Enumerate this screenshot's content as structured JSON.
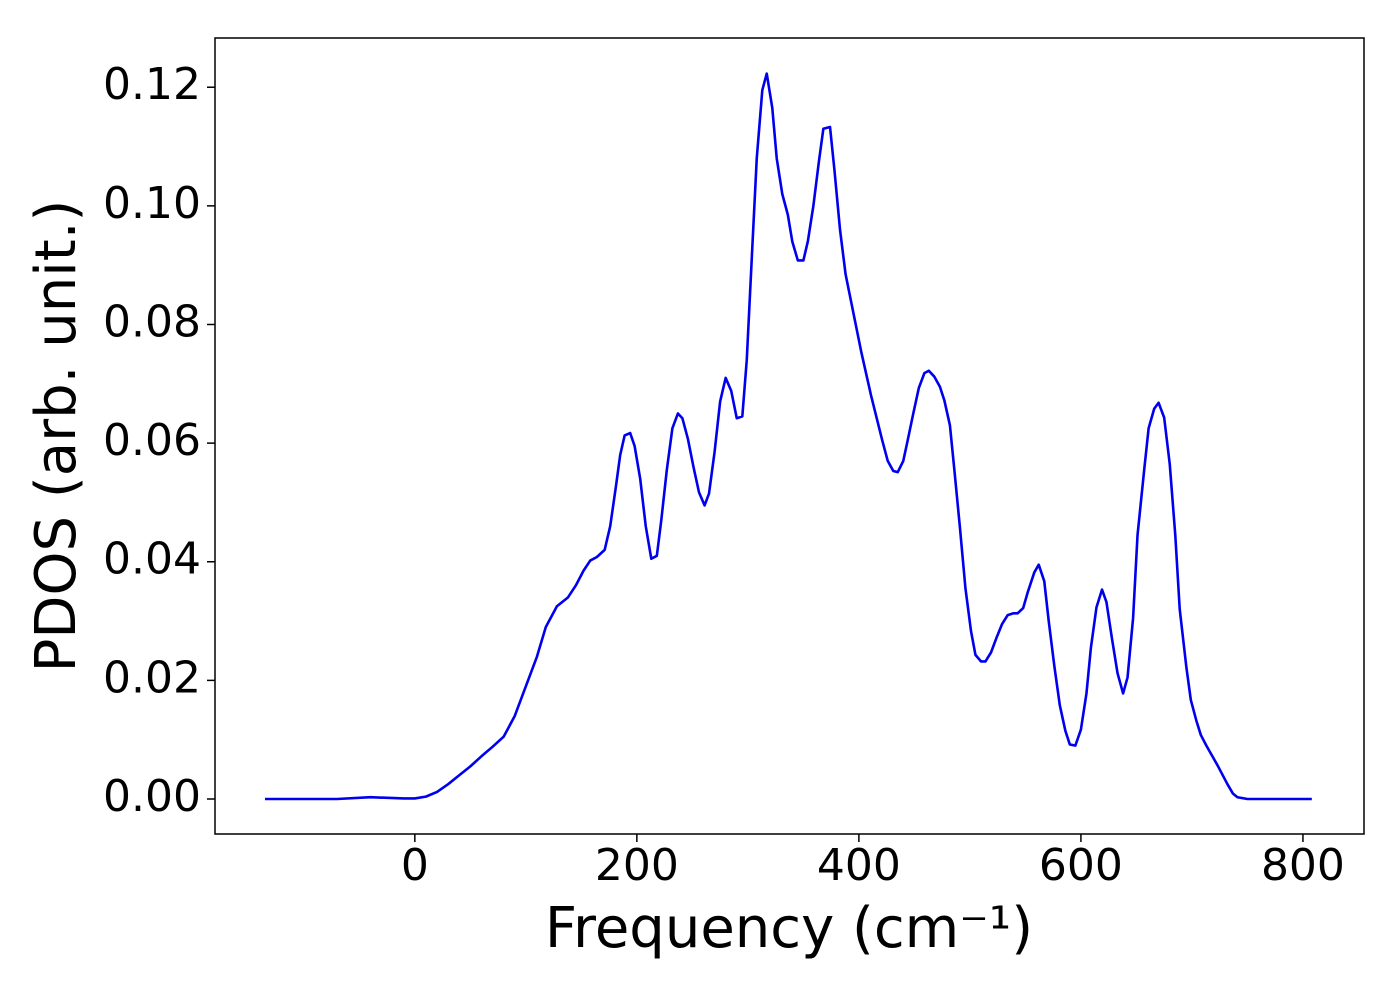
{
  "chart_data": {
    "type": "line",
    "xlabel": "Frequency (cm⁻¹)",
    "ylabel": "PDOS (arb. unit.)",
    "xlim": [
      -180,
      855
    ],
    "ylim": [
      -0.0059,
      0.1283
    ],
    "xticks": [
      0,
      200,
      400,
      600,
      800
    ],
    "yticks": [
      {
        "value": 0,
        "label": "0.00"
      },
      {
        "value": 0.02,
        "label": "0.02"
      },
      {
        "value": 0.04,
        "label": "0.04"
      },
      {
        "value": 0.06,
        "label": "0.06"
      },
      {
        "value": 0.08,
        "label": "0.08"
      },
      {
        "value": 0.1,
        "label": "0.10"
      },
      {
        "value": 0.12,
        "label": "0.12"
      }
    ],
    "grid": false,
    "x": [
      -135,
      -70,
      -40,
      -10,
      0,
      10,
      20,
      30,
      40,
      50,
      60,
      70,
      80,
      90,
      100,
      110,
      118,
      128,
      138,
      145,
      152,
      158,
      164,
      171,
      176,
      181,
      185,
      189,
      194,
      198,
      203,
      208,
      213,
      218,
      222,
      227,
      232,
      237,
      241,
      246,
      251,
      256,
      261,
      265,
      270,
      275,
      280,
      285,
      290,
      295,
      299,
      304,
      308,
      313,
      317,
      322,
      326,
      331,
      336,
      340,
      345,
      350,
      354,
      359,
      364,
      368,
      374,
      378,
      383,
      388,
      402,
      411,
      421,
      426,
      431,
      435,
      440,
      444,
      449,
      454,
      459,
      463,
      468,
      473,
      477,
      482,
      486,
      491,
      496,
      501,
      505,
      510,
      514,
      519,
      524,
      529,
      534,
      539,
      543,
      548,
      552,
      558,
      562,
      567,
      571,
      576,
      581,
      586,
      590,
      595,
      600,
      605,
      609,
      614,
      619,
      623,
      628,
      633,
      638,
      642,
      647,
      651,
      657,
      661,
      666,
      670,
      675,
      680,
      685,
      689,
      695,
      699,
      704,
      708,
      713,
      723,
      732,
      737,
      741,
      750,
      808
    ],
    "series": [
      {
        "name": "PDOS",
        "color": "#0000ee",
        "values": [
          0,
          0,
          0.0003,
          0.0001,
          0.0001,
          0.0004,
          0.0012,
          0.0025,
          0.004,
          0.0055,
          0.0072,
          0.0088,
          0.0105,
          0.014,
          0.019,
          0.024,
          0.029,
          0.0325,
          0.034,
          0.036,
          0.0385,
          0.0402,
          0.0408,
          0.042,
          0.046,
          0.0525,
          0.058,
          0.0613,
          0.0617,
          0.0595,
          0.054,
          0.046,
          0.0405,
          0.041,
          0.047,
          0.0555,
          0.0625,
          0.065,
          0.0642,
          0.0607,
          0.056,
          0.0517,
          0.0495,
          0.0515,
          0.0585,
          0.067,
          0.071,
          0.0688,
          0.0642,
          0.0645,
          0.074,
          0.093,
          0.108,
          0.1195,
          0.1223,
          0.1165,
          0.108,
          0.102,
          0.0985,
          0.094,
          0.0908,
          0.0908,
          0.094,
          0.1,
          0.1075,
          0.113,
          0.1133,
          0.106,
          0.096,
          0.0885,
          0.0755,
          0.068,
          0.0605,
          0.057,
          0.0553,
          0.0551,
          0.057,
          0.0605,
          0.065,
          0.0693,
          0.0718,
          0.0722,
          0.0712,
          0.0695,
          0.0672,
          0.063,
          0.0555,
          0.0458,
          0.0355,
          0.0283,
          0.0243,
          0.0232,
          0.0232,
          0.0247,
          0.0272,
          0.0295,
          0.031,
          0.0313,
          0.0313,
          0.0322,
          0.0348,
          0.0382,
          0.0395,
          0.0367,
          0.03,
          0.0225,
          0.0158,
          0.0115,
          0.0092,
          0.009,
          0.0117,
          0.0178,
          0.0255,
          0.0323,
          0.0353,
          0.0332,
          0.027,
          0.0212,
          0.0178,
          0.0205,
          0.0305,
          0.0445,
          0.0555,
          0.0625,
          0.0658,
          0.0668,
          0.0643,
          0.0565,
          0.0445,
          0.032,
          0.0222,
          0.0167,
          0.0132,
          0.0108,
          0.009,
          0.0057,
          0.0025,
          0.0009,
          0.0003,
          0,
          0
        ]
      }
    ]
  }
}
